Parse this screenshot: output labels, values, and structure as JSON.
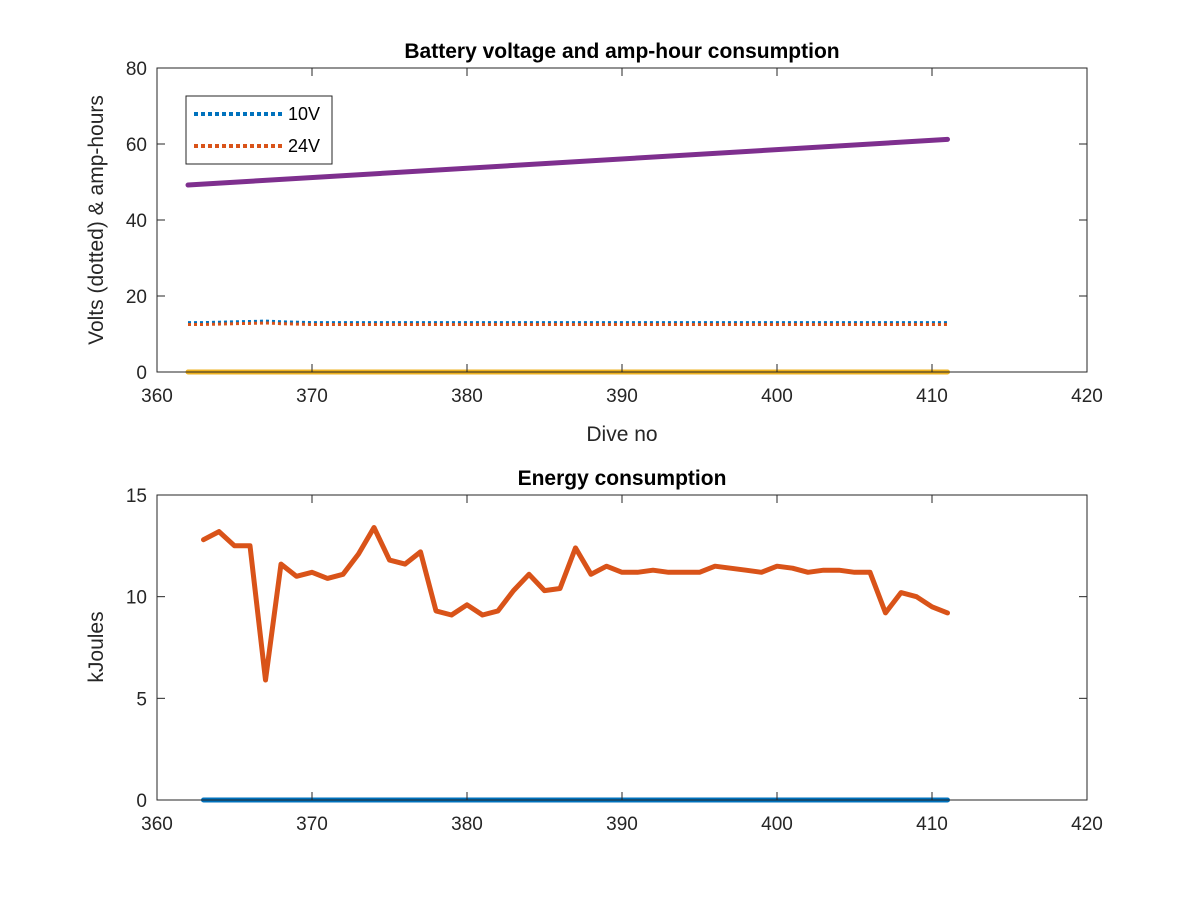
{
  "chart_data": [
    {
      "type": "line",
      "title": "Battery voltage and amp-hour consumption",
      "xlabel": "Dive no",
      "ylabel": "Volts (dotted) & amp-hours",
      "xlim": [
        360,
        420
      ],
      "ylim": [
        0,
        80
      ],
      "xticks": [
        360,
        370,
        380,
        390,
        400,
        410,
        420
      ],
      "yticks": [
        0,
        20,
        40,
        60,
        80
      ],
      "grid": false,
      "legend": {
        "placement": "top-left",
        "entries": [
          "10V",
          "24V"
        ]
      },
      "series": [
        {
          "name": "10V",
          "style": "dotted",
          "color": "#0072BD",
          "x": [
            362,
            363,
            364,
            365,
            366,
            367,
            368,
            369,
            370,
            371,
            372,
            373,
            374,
            375,
            376,
            377,
            378,
            379,
            380,
            381,
            382,
            383,
            384,
            385,
            386,
            387,
            388,
            389,
            390,
            391,
            392,
            393,
            394,
            395,
            396,
            397,
            398,
            399,
            400,
            401,
            402,
            403,
            404,
            405,
            406,
            407,
            408,
            409,
            410,
            411
          ],
          "y": [
            13,
            13,
            13.1,
            13.2,
            13.3,
            13.4,
            13.2,
            13.1,
            13,
            13,
            13,
            13,
            13,
            13,
            13,
            13,
            13,
            13,
            13,
            13,
            13,
            13,
            13,
            13,
            13,
            13,
            13,
            13,
            13,
            13,
            13,
            13,
            13,
            13,
            13,
            13,
            13,
            13,
            13,
            13,
            13,
            13,
            13,
            13,
            13,
            13,
            13,
            13,
            13,
            13
          ]
        },
        {
          "name": "24V",
          "style": "dotted",
          "color": "#D95319",
          "x": [
            362,
            363,
            364,
            365,
            366,
            367,
            368,
            369,
            370,
            371,
            372,
            373,
            374,
            375,
            376,
            377,
            378,
            379,
            380,
            381,
            382,
            383,
            384,
            385,
            386,
            387,
            388,
            389,
            390,
            391,
            392,
            393,
            394,
            395,
            396,
            397,
            398,
            399,
            400,
            401,
            402,
            403,
            404,
            405,
            406,
            407,
            408,
            409,
            410,
            411
          ],
          "y": [
            12.5,
            12.5,
            12.6,
            12.7,
            12.8,
            12.9,
            12.7,
            12.6,
            12.5,
            12.5,
            12.5,
            12.5,
            12.5,
            12.5,
            12.5,
            12.5,
            12.5,
            12.5,
            12.5,
            12.5,
            12.5,
            12.5,
            12.5,
            12.5,
            12.5,
            12.5,
            12.5,
            12.5,
            12.5,
            12.5,
            12.5,
            12.5,
            12.5,
            12.5,
            12.5,
            12.5,
            12.5,
            12.5,
            12.5,
            12.5,
            12.5,
            12.5,
            12.5,
            12.5,
            12.5,
            12.5,
            12.5,
            12.5,
            12.5,
            12.5
          ]
        },
        {
          "style": "solid",
          "color": "#EDB120",
          "x": [
            362,
            411
          ],
          "y": [
            0,
            0
          ]
        },
        {
          "style": "solid",
          "color": "#7E2F8E",
          "x": [
            362,
            411
          ],
          "y": [
            49.2,
            61.2
          ]
        }
      ]
    },
    {
      "type": "line",
      "title": "Energy consumption",
      "xlabel": "",
      "ylabel": "kJoules",
      "xlim": [
        360,
        420
      ],
      "ylim": [
        0,
        15
      ],
      "xticks": [
        360,
        370,
        380,
        390,
        400,
        410,
        420
      ],
      "yticks": [
        0,
        5,
        10,
        15
      ],
      "grid": false,
      "series": [
        {
          "style": "solid",
          "color": "#0072BD",
          "x": [
            363,
            411
          ],
          "y": [
            0,
            0
          ]
        },
        {
          "style": "solid",
          "color": "#D95319",
          "x": [
            363,
            364,
            365,
            366,
            367,
            368,
            369,
            370,
            371,
            372,
            373,
            374,
            375,
            376,
            377,
            378,
            379,
            380,
            381,
            382,
            383,
            384,
            385,
            386,
            387,
            388,
            389,
            390,
            391,
            392,
            393,
            394,
            395,
            396,
            397,
            398,
            399,
            400,
            401,
            402,
            403,
            404,
            405,
            406,
            407,
            408,
            409,
            410,
            411
          ],
          "y": [
            12.8,
            13.2,
            12.5,
            12.5,
            5.9,
            11.6,
            11,
            11.2,
            10.9,
            11.1,
            12.1,
            13.4,
            11.8,
            11.6,
            12.2,
            9.3,
            9.1,
            9.6,
            9.1,
            9.3,
            10.3,
            11.1,
            10.3,
            10.4,
            12.4,
            11.1,
            11.5,
            11.2,
            11.2,
            11.3,
            11.2,
            11.2,
            11.2,
            11.5,
            11.4,
            11.3,
            11.2,
            11.5,
            11.4,
            11.2,
            11.3,
            11.3,
            11.2,
            11.2,
            9.2,
            10.2,
            10,
            9.5,
            9.2
          ]
        }
      ]
    }
  ]
}
